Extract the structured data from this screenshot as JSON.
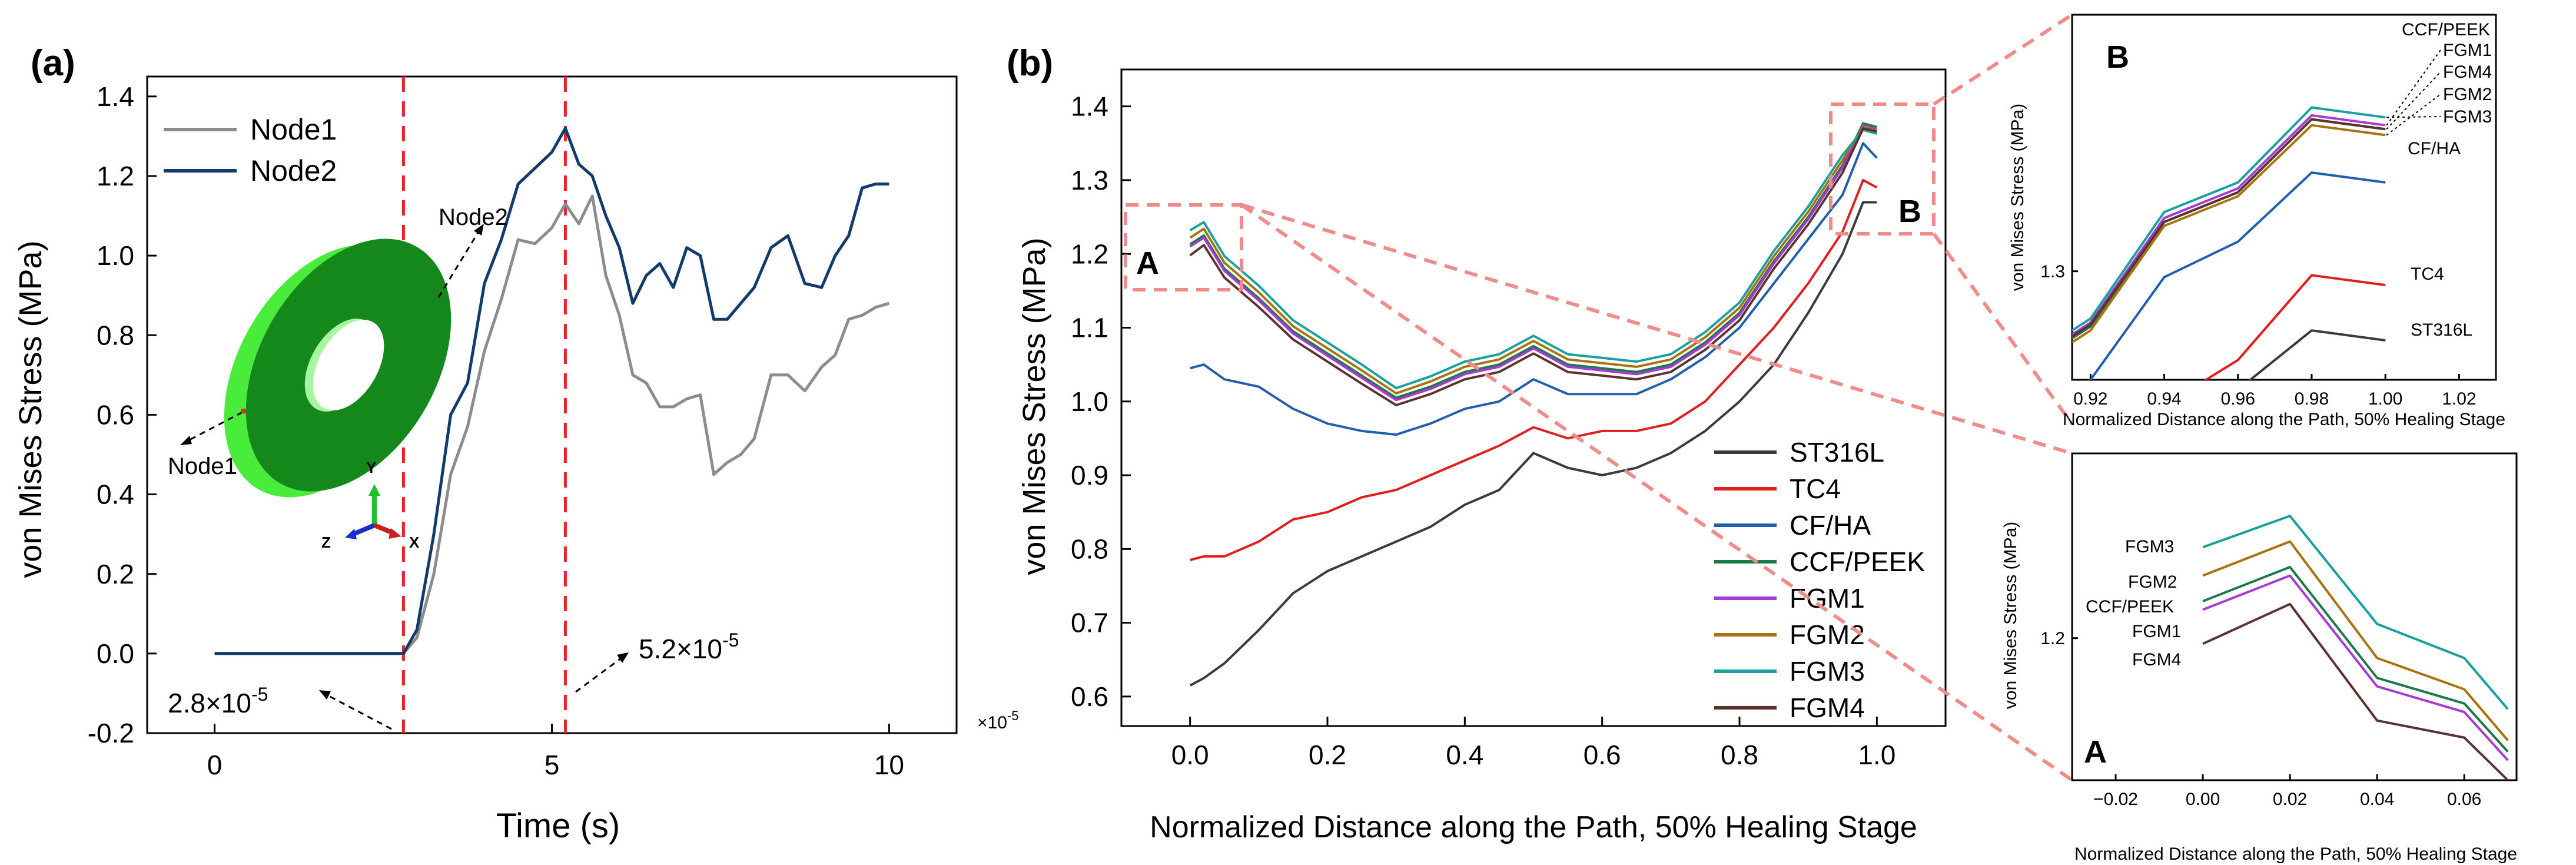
{
  "colors": {
    "node1": "#8c8c8c",
    "node2": "#123a6b",
    "marker": "#e8242a",
    "zoom": "#f08b8b",
    "ring": "#14881a",
    "ring_edge": "#49ec3a"
  },
  "chart_data": [
    {
      "panel": "(a)",
      "type": "line",
      "xlabel": "Time (s)",
      "ylabel": "von Mises Stress (MPa)",
      "xlim": [
        -1,
        11
      ],
      "ylim": [
        -0.2,
        1.45
      ],
      "x_multiplier": "×10",
      "x_multiplier_exp": "-5",
      "x_ticks": [
        0,
        5,
        10
      ],
      "y_ticks": [
        -0.2,
        0.0,
        0.2,
        0.4,
        0.6,
        0.8,
        1.0,
        1.2,
        1.4
      ],
      "y_tick_labels": [
        "-0.2",
        "0.0",
        "0.2",
        "0.4",
        "0.6",
        "0.8",
        "1.0",
        "1.2",
        "1.4"
      ],
      "grid": false,
      "legend": "top-left",
      "vlines": [
        2.8,
        5.2
      ],
      "annotations": [
        {
          "mantissa": "2.8×10",
          "exp": "-5"
        },
        {
          "mantissa": "5.2×10",
          "exp": "-5"
        }
      ],
      "inset": {
        "node1_label": "Node1",
        "node2_label": "Node2",
        "axis_y": "Y",
        "axis_z": "Z",
        "axis_x": "X"
      },
      "series": [
        {
          "name": "Node1",
          "color": "#8c8c8c",
          "x": [
            0,
            2.8,
            3.0,
            3.25,
            3.5,
            3.75,
            4.0,
            4.25,
            4.5,
            4.75,
            5.0,
            5.2,
            5.4,
            5.6,
            5.8,
            6.0,
            6.2,
            6.4,
            6.6,
            6.8,
            7.0,
            7.2,
            7.4,
            7.6,
            7.8,
            8.0,
            8.25,
            8.5,
            8.75,
            9.0,
            9.2,
            9.4,
            9.6,
            9.8,
            10.0
          ],
          "y": [
            0,
            0,
            0.04,
            0.2,
            0.45,
            0.57,
            0.76,
            0.89,
            1.04,
            1.03,
            1.07,
            1.13,
            1.08,
            1.15,
            0.95,
            0.85,
            0.7,
            0.68,
            0.62,
            0.62,
            0.64,
            0.65,
            0.45,
            0.48,
            0.5,
            0.54,
            0.7,
            0.7,
            0.66,
            0.72,
            0.75,
            0.84,
            0.85,
            0.87,
            0.88
          ]
        },
        {
          "name": "Node2",
          "color": "#123a6b",
          "x": [
            0,
            2.8,
            3.0,
            3.25,
            3.5,
            3.75,
            4.0,
            4.25,
            4.5,
            4.75,
            5.0,
            5.2,
            5.4,
            5.6,
            5.8,
            6.0,
            6.2,
            6.4,
            6.6,
            6.8,
            7.0,
            7.2,
            7.4,
            7.6,
            7.8,
            8.0,
            8.25,
            8.5,
            8.75,
            9.0,
            9.2,
            9.4,
            9.6,
            9.8,
            10.0
          ],
          "y": [
            0,
            0,
            0.06,
            0.3,
            0.6,
            0.68,
            0.93,
            1.04,
            1.18,
            1.22,
            1.26,
            1.32,
            1.23,
            1.2,
            1.1,
            1.02,
            0.88,
            0.95,
            0.98,
            0.92,
            1.02,
            1.0,
            0.84,
            0.84,
            0.88,
            0.92,
            1.02,
            1.05,
            0.93,
            0.92,
            1.0,
            1.05,
            1.17,
            1.18,
            1.18
          ]
        }
      ]
    },
    {
      "panel": "(b)",
      "type": "line",
      "xlabel": "Normalized Distance along the Path, 50% Healing Stage",
      "ylabel": "von Mises Stress (MPa)",
      "xlim": [
        -0.1,
        1.1
      ],
      "ylim": [
        0.56,
        1.45
      ],
      "x_ticks": [
        0.0,
        0.2,
        0.4,
        0.6,
        0.8,
        1.0
      ],
      "x_tick_labels": [
        "0.0",
        "0.2",
        "0.4",
        "0.6",
        "0.8",
        "1.0"
      ],
      "y_ticks": [
        0.6,
        0.7,
        0.8,
        0.9,
        1.0,
        1.1,
        1.2,
        1.3,
        1.4
      ],
      "y_tick_labels": [
        "0.6",
        "0.7",
        "0.8",
        "0.9",
        "1.0",
        "1.1",
        "1.2",
        "1.3",
        "1.4"
      ],
      "grid": false,
      "legend": "bottom-right",
      "zoom_boxes": [
        {
          "label": "A"
        },
        {
          "label": "B"
        }
      ],
      "series": [
        {
          "name": "ST316L",
          "color": "#3a3a3a",
          "x": [
            0,
            0.02,
            0.05,
            0.1,
            0.15,
            0.2,
            0.25,
            0.3,
            0.35,
            0.4,
            0.45,
            0.5,
            0.55,
            0.6,
            0.65,
            0.7,
            0.75,
            0.8,
            0.85,
            0.9,
            0.95,
            0.98,
            1.0
          ],
          "y": [
            0.615,
            0.625,
            0.645,
            0.69,
            0.74,
            0.77,
            0.79,
            0.81,
            0.83,
            0.86,
            0.88,
            0.93,
            0.91,
            0.9,
            0.91,
            0.93,
            0.96,
            1.0,
            1.05,
            1.12,
            1.2,
            1.27,
            1.27
          ]
        },
        {
          "name": "TC4",
          "color": "#e01e1e",
          "x": [
            0,
            0.02,
            0.05,
            0.1,
            0.15,
            0.2,
            0.25,
            0.3,
            0.35,
            0.4,
            0.45,
            0.5,
            0.55,
            0.6,
            0.65,
            0.7,
            0.75,
            0.8,
            0.85,
            0.9,
            0.95,
            0.98,
            1.0
          ],
          "y": [
            0.785,
            0.79,
            0.79,
            0.81,
            0.84,
            0.85,
            0.87,
            0.88,
            0.9,
            0.92,
            0.94,
            0.965,
            0.95,
            0.96,
            0.96,
            0.97,
            1.0,
            1.05,
            1.1,
            1.16,
            1.23,
            1.3,
            1.29
          ]
        },
        {
          "name": "CF/HA",
          "color": "#1f5fae",
          "x": [
            0,
            0.02,
            0.05,
            0.1,
            0.15,
            0.2,
            0.25,
            0.3,
            0.35,
            0.4,
            0.45,
            0.5,
            0.55,
            0.6,
            0.65,
            0.7,
            0.75,
            0.8,
            0.85,
            0.9,
            0.95,
            0.98,
            1.0
          ],
          "y": [
            1.045,
            1.05,
            1.03,
            1.02,
            0.99,
            0.97,
            0.96,
            0.955,
            0.97,
            0.99,
            1.0,
            1.03,
            1.01,
            1.01,
            1.01,
            1.03,
            1.06,
            1.1,
            1.16,
            1.22,
            1.28,
            1.35,
            1.33
          ]
        },
        {
          "name": "CCF/PEEK",
          "color": "#1c7a48",
          "x": [
            0,
            0.02,
            0.05,
            0.1,
            0.15,
            0.2,
            0.25,
            0.3,
            0.35,
            0.4,
            0.45,
            0.5,
            0.55,
            0.6,
            0.65,
            0.7,
            0.75,
            0.8,
            0.85,
            0.9,
            0.95,
            0.98,
            1.0
          ],
          "y": [
            1.213,
            1.225,
            1.18,
            1.14,
            1.095,
            1.065,
            1.035,
            1.005,
            1.02,
            1.04,
            1.05,
            1.075,
            1.05,
            1.045,
            1.04,
            1.05,
            1.08,
            1.12,
            1.19,
            1.25,
            1.32,
            1.377,
            1.372
          ]
        },
        {
          "name": "FGM1",
          "color": "#a63bd4",
          "x": [
            0,
            0.02,
            0.05,
            0.1,
            0.15,
            0.2,
            0.25,
            0.3,
            0.35,
            0.4,
            0.45,
            0.5,
            0.55,
            0.6,
            0.65,
            0.7,
            0.75,
            0.8,
            0.85,
            0.9,
            0.95,
            0.98,
            1.0
          ],
          "y": [
            1.21,
            1.222,
            1.177,
            1.137,
            1.092,
            1.062,
            1.032,
            1.002,
            1.017,
            1.037,
            1.047,
            1.072,
            1.047,
            1.042,
            1.037,
            1.047,
            1.077,
            1.117,
            1.187,
            1.247,
            1.317,
            1.374,
            1.369
          ]
        },
        {
          "name": "FGM2",
          "color": "#a8730e",
          "x": [
            0,
            0.02,
            0.05,
            0.1,
            0.15,
            0.2,
            0.25,
            0.3,
            0.35,
            0.4,
            0.45,
            0.5,
            0.55,
            0.6,
            0.65,
            0.7,
            0.75,
            0.8,
            0.85,
            0.9,
            0.95,
            0.98,
            1.0
          ],
          "y": [
            1.222,
            1.234,
            1.188,
            1.148,
            1.102,
            1.072,
            1.042,
            1.011,
            1.027,
            1.047,
            1.057,
            1.082,
            1.057,
            1.052,
            1.047,
            1.057,
            1.087,
            1.127,
            1.197,
            1.257,
            1.327,
            1.372,
            1.367
          ]
        },
        {
          "name": "FGM3",
          "color": "#18a0a0",
          "x": [
            0,
            0.02,
            0.05,
            0.1,
            0.15,
            0.2,
            0.25,
            0.3,
            0.35,
            0.4,
            0.45,
            0.5,
            0.55,
            0.6,
            0.65,
            0.7,
            0.75,
            0.8,
            0.85,
            0.9,
            0.95,
            0.98,
            1.0
          ],
          "y": [
            1.232,
            1.243,
            1.197,
            1.157,
            1.11,
            1.08,
            1.05,
            1.018,
            1.034,
            1.054,
            1.064,
            1.089,
            1.064,
            1.059,
            1.054,
            1.064,
            1.094,
            1.134,
            1.204,
            1.264,
            1.334,
            1.368,
            1.363
          ]
        },
        {
          "name": "FGM4",
          "color": "#5c3131",
          "x": [
            0,
            0.02,
            0.05,
            0.1,
            0.15,
            0.2,
            0.25,
            0.3,
            0.35,
            0.4,
            0.45,
            0.5,
            0.55,
            0.6,
            0.65,
            0.7,
            0.75,
            0.8,
            0.85,
            0.9,
            0.95,
            0.98,
            1.0
          ],
          "y": [
            1.198,
            1.212,
            1.168,
            1.128,
            1.084,
            1.054,
            1.024,
            0.995,
            1.01,
            1.03,
            1.04,
            1.065,
            1.04,
            1.035,
            1.03,
            1.04,
            1.07,
            1.11,
            1.18,
            1.24,
            1.31,
            1.37,
            1.366
          ]
        }
      ]
    },
    {
      "panel": "B",
      "type": "line",
      "label": "B",
      "xlabel": "Normalized Distance along the Path, 50% Healing Stage",
      "ylabel": "von Mises Stress (MPa)",
      "xlim": [
        0.915,
        1.03
      ],
      "ylim": [
        1.245,
        1.43
      ],
      "x_ticks": [
        0.92,
        0.94,
        0.96,
        0.98,
        1.0,
        1.02
      ],
      "x_tick_labels": [
        "0.92",
        "0.94",
        "0.96",
        "0.98",
        "1.00",
        "1.02"
      ],
      "y_ticks": [
        1.3
      ],
      "y_tick_labels": [
        "1.3"
      ],
      "series": [
        {
          "name": "ST316L",
          "color": "#3a3a3a",
          "x": [
            0.96,
            0.98,
            1.0
          ],
          "y": [
            1.24,
            1.27,
            1.265
          ]
        },
        {
          "name": "TC4",
          "color": "#e01e1e",
          "x": [
            0.94,
            0.96,
            0.98,
            1.0
          ],
          "y": [
            1.232,
            1.255,
            1.298,
            1.293
          ]
        },
        {
          "name": "CF/HA",
          "color": "#1f5fae",
          "x": [
            0.92,
            0.94,
            0.96,
            0.98,
            1.0
          ],
          "y": [
            1.245,
            1.297,
            1.315,
            1.35,
            1.345
          ]
        },
        {
          "name": "CCF/PEEK",
          "color": "#1c7a48",
          "x": [
            0.915,
            0.92,
            0.94,
            0.96,
            0.98,
            1.0
          ],
          "y": [
            1.266,
            1.272,
            1.325,
            1.34,
            1.377,
            1.372
          ]
        },
        {
          "name": "FGM1",
          "color": "#a63bd4",
          "x": [
            0.915,
            0.92,
            0.94,
            0.96,
            0.98,
            1.0
          ],
          "y": [
            1.268,
            1.274,
            1.327,
            1.342,
            1.379,
            1.374
          ]
        },
        {
          "name": "FGM2",
          "color": "#a8730e",
          "x": [
            0.915,
            0.92,
            0.94,
            0.96,
            0.98,
            1.0
          ],
          "y": [
            1.264,
            1.27,
            1.323,
            1.338,
            1.374,
            1.369
          ]
        },
        {
          "name": "FGM3",
          "color": "#18a0a0",
          "x": [
            0.915,
            0.92,
            0.94,
            0.96,
            0.98,
            1.0
          ],
          "y": [
            1.27,
            1.276,
            1.33,
            1.345,
            1.383,
            1.378
          ]
        },
        {
          "name": "FGM4",
          "color": "#5c3131",
          "x": [
            0.915,
            0.92,
            0.94,
            0.96,
            0.98,
            1.0
          ],
          "y": [
            1.267,
            1.273,
            1.325,
            1.34,
            1.377,
            1.372
          ]
        }
      ],
      "labels": [
        "CCF/PEEK",
        "FGM1",
        "FGM4",
        "FGM2",
        "FGM3",
        "CF/HA",
        "TC4",
        "ST316L"
      ]
    },
    {
      "panel": "A",
      "type": "line",
      "label": "A",
      "xlabel": "Normalized Distance along the Path, 50% Healing Stage",
      "ylabel": "von Mises Stress (MPa)",
      "xlim": [
        -0.03,
        0.072
      ],
      "ylim": [
        1.15,
        1.265
      ],
      "x_ticks": [
        -0.02,
        0.0,
        0.02,
        0.04,
        0.06
      ],
      "x_tick_labels": [
        "−0.02",
        "0.00",
        "0.02",
        "0.04",
        "0.06"
      ],
      "y_ticks": [
        1.2
      ],
      "y_tick_labels": [
        "1.2"
      ],
      "series": [
        {
          "name": "FGM3",
          "color": "#18a0a0",
          "x": [
            0.0,
            0.02,
            0.04,
            0.06,
            0.07
          ],
          "y": [
            1.232,
            1.243,
            1.205,
            1.193,
            1.175
          ]
        },
        {
          "name": "FGM2",
          "color": "#a8730e",
          "x": [
            0.0,
            0.02,
            0.04,
            0.06,
            0.07
          ],
          "y": [
            1.222,
            1.234,
            1.193,
            1.182,
            1.164
          ]
        },
        {
          "name": "CCF/PEEK",
          "color": "#1c7a48",
          "x": [
            0.0,
            0.02,
            0.04,
            0.06,
            0.07
          ],
          "y": [
            1.213,
            1.225,
            1.186,
            1.177,
            1.16
          ]
        },
        {
          "name": "FGM1",
          "color": "#a63bd4",
          "x": [
            0.0,
            0.02,
            0.04,
            0.06,
            0.07
          ],
          "y": [
            1.21,
            1.222,
            1.183,
            1.174,
            1.157
          ]
        },
        {
          "name": "FGM4",
          "color": "#5c3131",
          "x": [
            0.0,
            0.02,
            0.04,
            0.06,
            0.07
          ],
          "y": [
            1.198,
            1.212,
            1.171,
            1.165,
            1.15
          ]
        }
      ],
      "labels": [
        "FGM3",
        "FGM2",
        "CCF/PEEK",
        "FGM1",
        "FGM4"
      ]
    }
  ]
}
